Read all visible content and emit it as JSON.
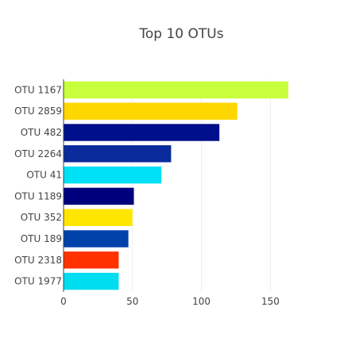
{
  "chart_data": {
    "type": "bar",
    "orientation": "horizontal",
    "title": "Top 10 OTUs",
    "xlabel": "",
    "ylabel": "",
    "xlim": [
      0,
      163
    ],
    "xticks": [
      0,
      50,
      100,
      150
    ],
    "grid": "vertical",
    "legend": "none",
    "categories": [
      "OTU 1167",
      "OTU 2859",
      "OTU 482",
      "OTU 2264",
      "OTU 41",
      "OTU 1189",
      "OTU 352",
      "OTU 189",
      "OTU 2318",
      "OTU 1977"
    ],
    "values": [
      163,
      126,
      113,
      78,
      71,
      51,
      50,
      47,
      40,
      40
    ],
    "colors": [
      "#c8ff3c",
      "#ffd700",
      "#000f8c",
      "#0a2b9b",
      "#00e1f5",
      "#00007d",
      "#ffe600",
      "#0041aa",
      "#ff3200",
      "#00dcf0"
    ]
  }
}
